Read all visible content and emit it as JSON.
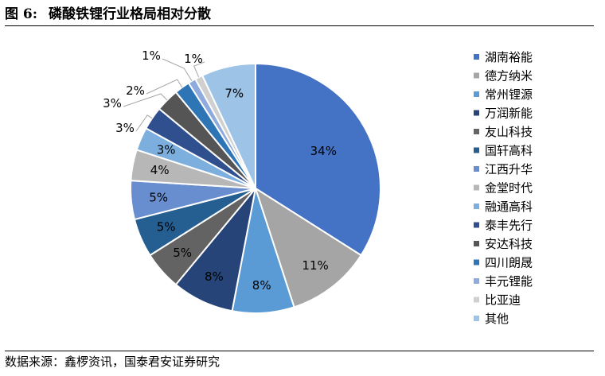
{
  "figure": {
    "label": "图 6:",
    "title": "磷酸铁锂行业格局相对分散"
  },
  "source": "数据来源：鑫椤资讯，国泰君安证券研究",
  "chart_data": {
    "type": "pie",
    "title": "磷酸铁锂行业格局相对分散",
    "legend_position": "right",
    "slices": [
      {
        "name": "湖南裕能",
        "value": 34,
        "label": "34%",
        "color": "#4472C4"
      },
      {
        "name": "德方纳米",
        "value": 11,
        "label": "11%",
        "color": "#A5A5A5"
      },
      {
        "name": "常州锂源",
        "value": 8,
        "label": "8%",
        "color": "#5B9BD5"
      },
      {
        "name": "万润新能",
        "value": 8,
        "label": "8%",
        "color": "#264478"
      },
      {
        "name": "友山科技",
        "value": 5,
        "label": "5%",
        "color": "#636363"
      },
      {
        "name": "国轩高科",
        "value": 5,
        "label": "5%",
        "color": "#255E91"
      },
      {
        "name": "江西升华",
        "value": 5,
        "label": "5%",
        "color": "#698ED0"
      },
      {
        "name": "金堂时代",
        "value": 4,
        "label": "4%",
        "color": "#B7B7B7"
      },
      {
        "name": "融通高科",
        "value": 3,
        "label": "3%",
        "color": "#7CAFDD"
      },
      {
        "name": "泰丰先行",
        "value": 3,
        "label": "3%",
        "color": "#2F4F8F"
      },
      {
        "name": "安达科技",
        "value": 3,
        "label": "3%",
        "color": "#555555"
      },
      {
        "name": "四川朗晟",
        "value": 2,
        "label": "2%",
        "color": "#2E75B6"
      },
      {
        "name": "丰元锂能",
        "value": 1,
        "label": "1%",
        "color": "#8FAADC"
      },
      {
        "name": "比亚迪",
        "value": 1,
        "label": "1%",
        "color": "#D0D0D0"
      },
      {
        "name": "其他",
        "value": 7,
        "label": "7%",
        "color": "#9DC3E6"
      }
    ]
  }
}
